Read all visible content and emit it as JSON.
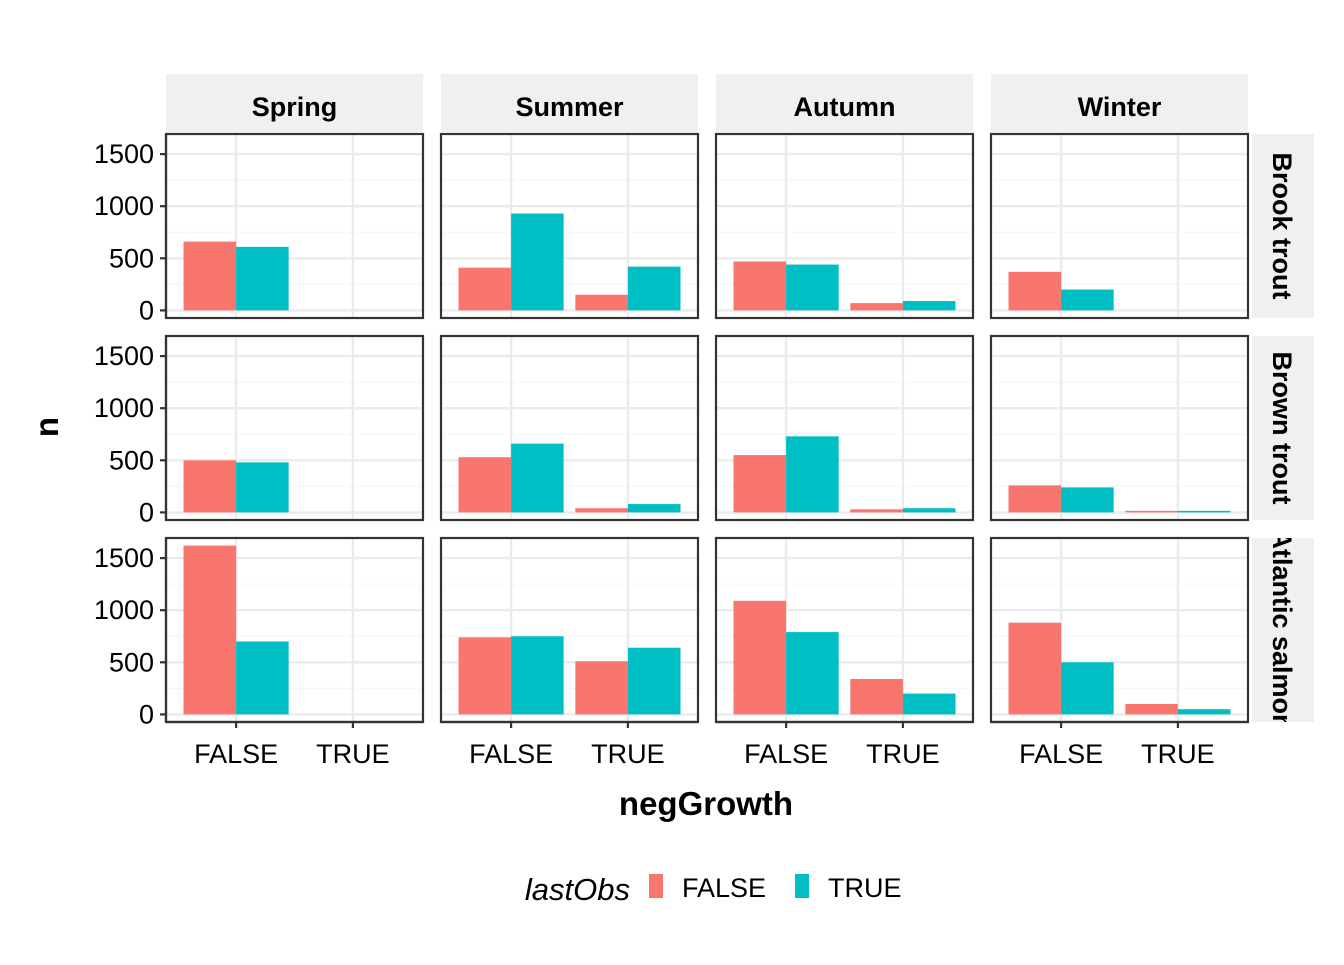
{
  "chart_data": {
    "type": "bar",
    "xlabel": "negGrowth",
    "ylabel": "n",
    "categories": [
      "FALSE",
      "TRUE"
    ],
    "ylim": [
      0,
      1620
    ],
    "yticks": [
      0,
      500,
      1000,
      1500
    ],
    "column_facets": [
      "Spring",
      "Summer",
      "Autumn",
      "Winter"
    ],
    "row_facets": [
      "Brook trout",
      "Brown trout",
      "Atlantic salmon"
    ],
    "legend": {
      "title": "lastObs",
      "position": "bottom",
      "entries": [
        {
          "label": "FALSE",
          "color": "#F8766D"
        },
        {
          "label": "TRUE",
          "color": "#00BFC4"
        }
      ]
    },
    "grid": true,
    "panels": [
      {
        "row": "Brook trout",
        "col": "Spring",
        "FALSE": {
          "FALSE": 660,
          "TRUE": 610
        },
        "TRUE": {
          "FALSE": null,
          "TRUE": null
        }
      },
      {
        "row": "Brook trout",
        "col": "Summer",
        "FALSE": {
          "FALSE": 410,
          "TRUE": 930
        },
        "TRUE": {
          "FALSE": 150,
          "TRUE": 420
        }
      },
      {
        "row": "Brook trout",
        "col": "Autumn",
        "FALSE": {
          "FALSE": 470,
          "TRUE": 440
        },
        "TRUE": {
          "FALSE": 70,
          "TRUE": 90
        }
      },
      {
        "row": "Brook trout",
        "col": "Winter",
        "FALSE": {
          "FALSE": 370,
          "TRUE": 200
        },
        "TRUE": {
          "FALSE": null,
          "TRUE": null
        }
      },
      {
        "row": "Brown trout",
        "col": "Spring",
        "FALSE": {
          "FALSE": 500,
          "TRUE": 480
        },
        "TRUE": {
          "FALSE": null,
          "TRUE": null
        }
      },
      {
        "row": "Brown trout",
        "col": "Summer",
        "FALSE": {
          "FALSE": 530,
          "TRUE": 660
        },
        "TRUE": {
          "FALSE": 40,
          "TRUE": 80
        }
      },
      {
        "row": "Brown trout",
        "col": "Autumn",
        "FALSE": {
          "FALSE": 550,
          "TRUE": 730
        },
        "TRUE": {
          "FALSE": 30,
          "TRUE": 40
        }
      },
      {
        "row": "Brown trout",
        "col": "Winter",
        "FALSE": {
          "FALSE": 260,
          "TRUE": 240
        },
        "TRUE": {
          "FALSE": 15,
          "TRUE": 15
        }
      },
      {
        "row": "Atlantic salmon",
        "col": "Spring",
        "FALSE": {
          "FALSE": 1620,
          "TRUE": 700
        },
        "TRUE": {
          "FALSE": null,
          "TRUE": null
        }
      },
      {
        "row": "Atlantic salmon",
        "col": "Summer",
        "FALSE": {
          "FALSE": 740,
          "TRUE": 750
        },
        "TRUE": {
          "FALSE": 510,
          "TRUE": 640
        }
      },
      {
        "row": "Atlantic salmon",
        "col": "Autumn",
        "FALSE": {
          "FALSE": 1090,
          "TRUE": 790
        },
        "TRUE": {
          "FALSE": 340,
          "TRUE": 200
        }
      },
      {
        "row": "Atlantic salmon",
        "col": "Winter",
        "FALSE": {
          "FALSE": 880,
          "TRUE": 500
        },
        "TRUE": {
          "FALSE": 100,
          "TRUE": 50
        }
      }
    ]
  }
}
